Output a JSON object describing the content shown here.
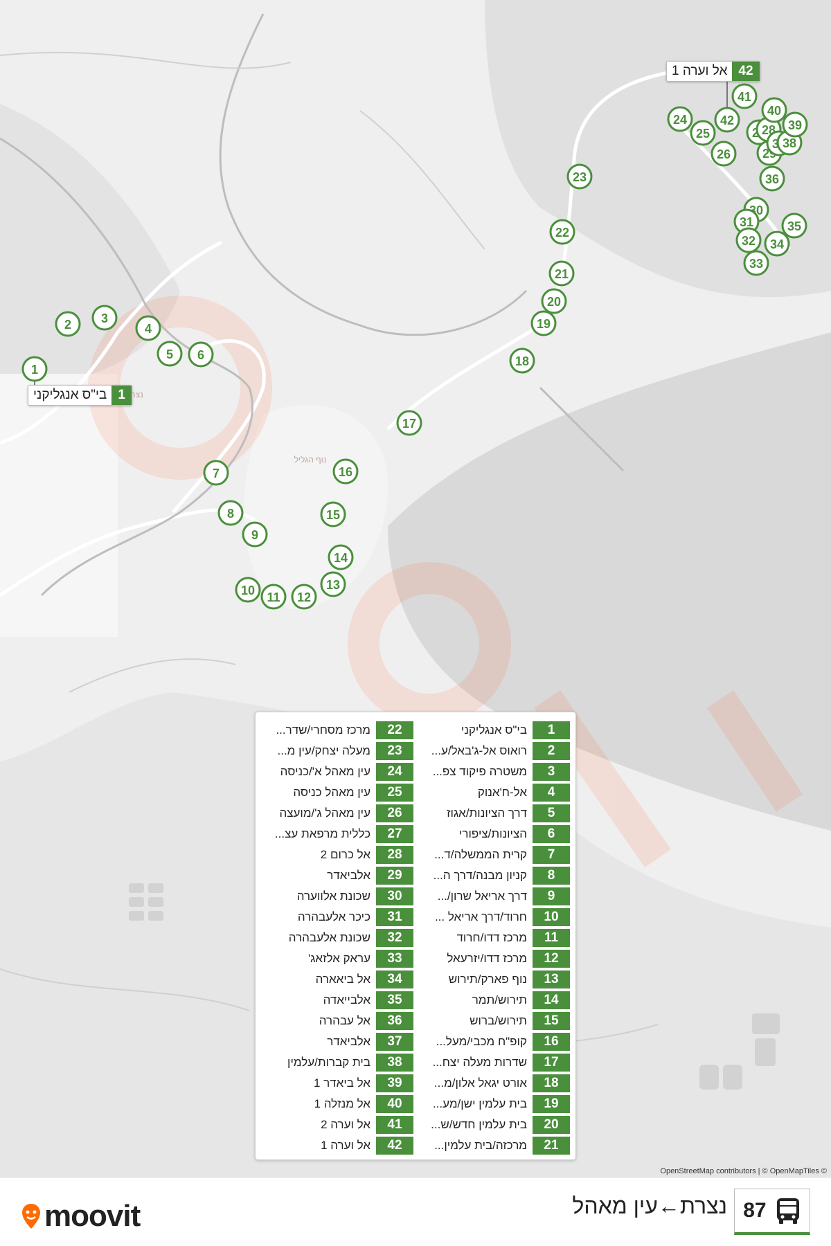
{
  "route": {
    "number": "87",
    "direction": "נצרת←עין מאהל"
  },
  "brand": {
    "name": "moovit",
    "accent": "#4a8f3c",
    "logo_color": "#ff6b00"
  },
  "map": {
    "attribution": "OpenStreetMap contributors | © OpenMapTiles ©",
    "place_labels": [
      "נוף הגליל",
      "נצרת"
    ],
    "start_callout": {
      "number": "1",
      "name": "בי\"ס אנגליקני"
    },
    "end_callout": {
      "number": "42",
      "name": "אל וערה 1"
    }
  },
  "stops": [
    {
      "n": "1",
      "name": "בי\"ס אנגליקני"
    },
    {
      "n": "2",
      "name": "רואוס אל-ג'באל/ע..."
    },
    {
      "n": "3",
      "name": "משטרה פיקוד צפ..."
    },
    {
      "n": "4",
      "name": "אל-ח'אנוק"
    },
    {
      "n": "5",
      "name": "דרך הציונות/אגוז"
    },
    {
      "n": "6",
      "name": "הציונות/ציפורי"
    },
    {
      "n": "7",
      "name": "קרית הממשלה/ד..."
    },
    {
      "n": "8",
      "name": "קניון מבנה/דרך ה..."
    },
    {
      "n": "9",
      "name": "דרך אריאל שרון/..."
    },
    {
      "n": "10",
      "name": "חרוד/דרך אריאל ..."
    },
    {
      "n": "11",
      "name": "מרכז דדו/חרוד"
    },
    {
      "n": "12",
      "name": "מרכז דדו/יזרעאל"
    },
    {
      "n": "13",
      "name": "נוף פארק/תירוש"
    },
    {
      "n": "14",
      "name": "תירוש/תמר"
    },
    {
      "n": "15",
      "name": "תירוש/ברוש"
    },
    {
      "n": "16",
      "name": "קופ\"ח מכבי/מעל..."
    },
    {
      "n": "17",
      "name": "שדרות מעלה יצח..."
    },
    {
      "n": "18",
      "name": "אורט יגאל אלון/מ..."
    },
    {
      "n": "19",
      "name": "בית עלמין ישן/מע..."
    },
    {
      "n": "20",
      "name": "בית עלמין חדש/ש..."
    },
    {
      "n": "21",
      "name": "מרכזה/בית עלמין..."
    },
    {
      "n": "22",
      "name": "מרכז מסחרי/שדר..."
    },
    {
      "n": "23",
      "name": "מעלה יצחק/עין מ..."
    },
    {
      "n": "24",
      "name": "עין מאהל א'/כניסה"
    },
    {
      "n": "25",
      "name": "עין מאהל כניסה"
    },
    {
      "n": "26",
      "name": "עין מאהל ג'/מועצה"
    },
    {
      "n": "27",
      "name": "כללית מרפאת עצ..."
    },
    {
      "n": "28",
      "name": "אל כרום 2"
    },
    {
      "n": "29",
      "name": "אלביאדר"
    },
    {
      "n": "30",
      "name": "שכונת אלווערה"
    },
    {
      "n": "31",
      "name": "כיכר אלעבהרה"
    },
    {
      "n": "32",
      "name": "שכונת אלעבהרה"
    },
    {
      "n": "33",
      "name": "עראק אלזאג'"
    },
    {
      "n": "34",
      "name": "אל ביאארה"
    },
    {
      "n": "35",
      "name": "אלבייאדה"
    },
    {
      "n": "36",
      "name": "אל עבהרה"
    },
    {
      "n": "37",
      "name": "אלביאדר"
    },
    {
      "n": "38",
      "name": "בית קברות/עלמין"
    },
    {
      "n": "39",
      "name": "אל ביאדר 1"
    },
    {
      "n": "40",
      "name": "אל מנזלה 1"
    },
    {
      "n": "41",
      "name": "אל וערה 2"
    },
    {
      "n": "42",
      "name": "אל וערה 1"
    }
  ]
}
